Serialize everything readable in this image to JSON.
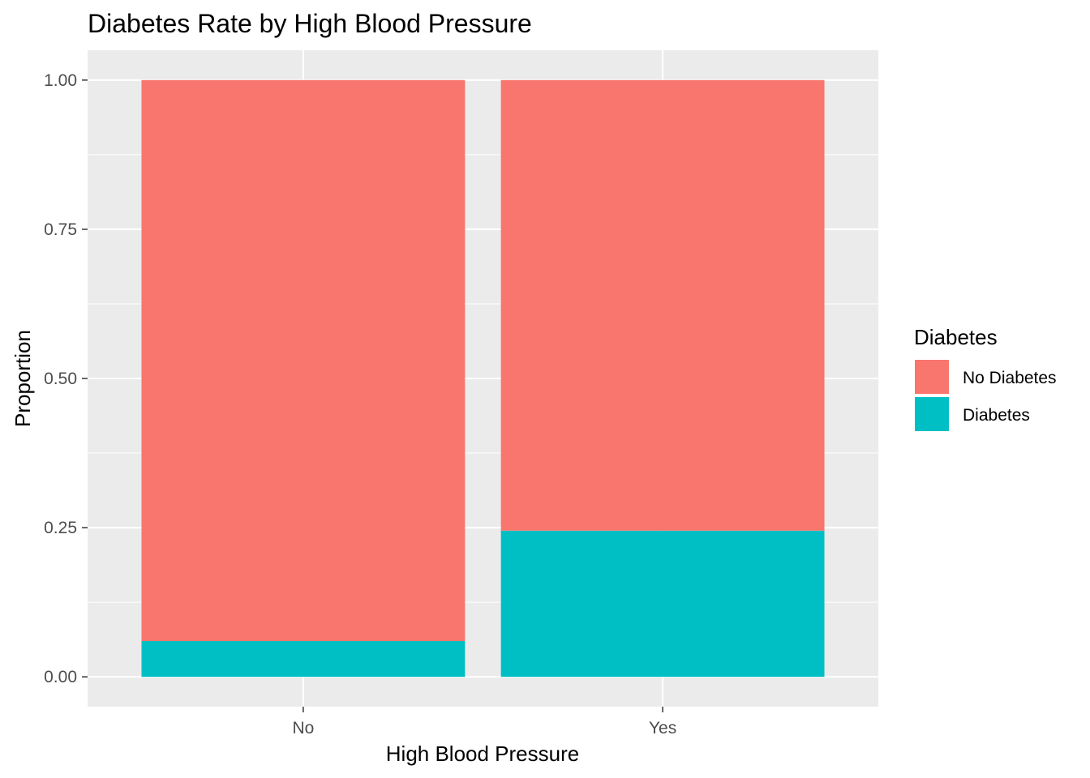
{
  "chart_data": {
    "type": "bar",
    "stacked": true,
    "title": "Diabetes Rate by High Blood Pressure",
    "xlabel": "High Blood Pressure",
    "ylabel": "Proportion",
    "categories": [
      "No",
      "Yes"
    ],
    "series": [
      {
        "name": "No Diabetes",
        "values": [
          0.94,
          0.755
        ],
        "color": "#F8766D"
      },
      {
        "name": "Diabetes",
        "values": [
          0.06,
          0.245
        ],
        "color": "#00BFC4"
      }
    ],
    "ylim": [
      -0.05,
      1.05
    ],
    "yticks": [
      0,
      0.25,
      0.5,
      0.75,
      1.0
    ],
    "ytick_labels": [
      "0.00",
      "0.25",
      "0.50",
      "0.75",
      "1.00"
    ],
    "grid": true,
    "panel_background": "#EBEBEB",
    "legend": {
      "title": "Diabetes",
      "position": "right",
      "entries": [
        "No Diabetes",
        "Diabetes"
      ]
    }
  }
}
